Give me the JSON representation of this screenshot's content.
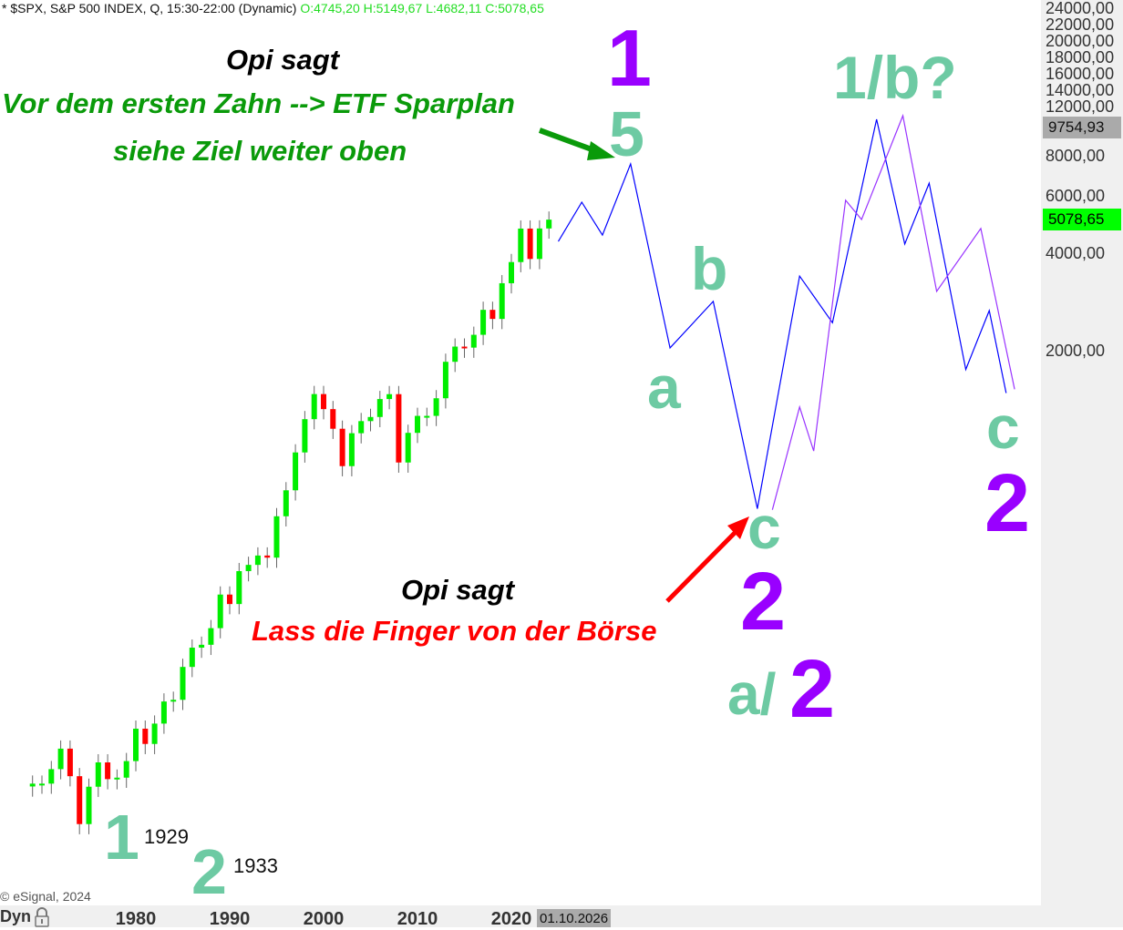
{
  "header": {
    "title": "* $SPX, S&P 500 INDEX, Q, 15:30-22:00 (Dynamic)",
    "ohlc": "O:4745,20 H:5149,67 L:4682,11 C:5078,65"
  },
  "copyright": "© eSignal, 2024",
  "footer": {
    "dyn_label": "Dyn",
    "cursor_date": "01.10.2026"
  },
  "colors": {
    "up": "#00ee00",
    "down": "#ff0000",
    "wick": "#666666",
    "projection_blue": "#0000ff",
    "projection_purple": "#9933ff",
    "wave_teal": "#6dcaa3",
    "wave_purple": "#9900ff",
    "last_price_bg": "#00ff00",
    "cursor_bg": "#aaaaaa"
  },
  "chart_data": {
    "type": "candlestick",
    "yscale": "log",
    "grid": false,
    "x_ticks": [
      "1980",
      "1990",
      "2000",
      "2010",
      "2020"
    ],
    "y_ticks": [
      "24000,00",
      "22000,00",
      "20000,00",
      "18000,00",
      "16000,00",
      "14000,00",
      "12000,00",
      "8000,00",
      "6000,00",
      "4000,00",
      "2000,00"
    ],
    "y_tick_values": [
      24000,
      22000,
      20000,
      18000,
      16000,
      14000,
      12000,
      8000,
      6000,
      4000,
      2000
    ],
    "last_price": {
      "value": 5078.65,
      "label": "5078,65"
    },
    "cursor_price": {
      "value": 9754.93,
      "label": "9754,93"
    },
    "annual_closes": {
      "years": [
        1969,
        1970,
        1971,
        1972,
        1973,
        1974,
        1975,
        1976,
        1977,
        1978,
        1979,
        1980,
        1981,
        1982,
        1983,
        1984,
        1985,
        1986,
        1987,
        1988,
        1989,
        1990,
        1991,
        1992,
        1993,
        1994,
        1995,
        1996,
        1997,
        1998,
        1999,
        2000,
        2001,
        2002,
        2003,
        2004,
        2005,
        2006,
        2007,
        2008,
        2009,
        2010,
        2011,
        2012,
        2013,
        2014,
        2015,
        2016,
        2017,
        2018,
        2019,
        2020,
        2021,
        2022,
        2023,
        2024
      ],
      "close": [
        92,
        92,
        102,
        118,
        97,
        69,
        90,
        107,
        95,
        96,
        108,
        136,
        122,
        141,
        165,
        167,
        211,
        242,
        247,
        278,
        353,
        330,
        417,
        436,
        466,
        459,
        616,
        741,
        970,
        1229,
        1469,
        1320,
        1148,
        880,
        1112,
        1212,
        1248,
        1418,
        1468,
        903,
        1115,
        1258,
        1258,
        1426,
        1848,
        2059,
        2044,
        2239,
        2674,
        2507,
        3231,
        3756,
        4766,
        3840,
        4770,
        5079
      ]
    },
    "projections": [
      {
        "color": "blue",
        "points": [
          [
            2025.0,
            4350
          ],
          [
            2027.5,
            5750
          ],
          [
            2029.7,
            4550
          ],
          [
            2032.7,
            7550
          ],
          [
            2036.9,
            2040
          ],
          [
            2041.5,
            2840
          ],
          [
            2046.2,
            650
          ],
          [
            2050.7,
            3400
          ],
          [
            2054.2,
            2440
          ],
          [
            2058.9,
            10370
          ],
          [
            2061.9,
            4270
          ],
          [
            2064.5,
            6580
          ],
          [
            2068.4,
            1750
          ],
          [
            2070.9,
            2660
          ],
          [
            2072.7,
            1480
          ]
        ]
      },
      {
        "color": "purple",
        "points": [
          [
            2047.8,
            645
          ],
          [
            2050.7,
            1340
          ],
          [
            2052.2,
            980
          ],
          [
            2055.6,
            5830
          ],
          [
            2057.3,
            5085
          ],
          [
            2061.7,
            10640
          ],
          [
            2065.3,
            3050
          ],
          [
            2070.0,
            4770
          ],
          [
            2073.6,
            1520
          ]
        ]
      }
    ],
    "annotations": {
      "opi1": "Opi sagt",
      "etf": "Vor dem ersten Zahn --> ETF Sparplan",
      "ziel": "siehe Ziel weiter oben",
      "opi2": "Opi sagt",
      "finger": "Lass die Finger von der Börse",
      "w1_top": "1",
      "w5": "5",
      "wb": "b",
      "wa": "a",
      "wc": "c",
      "w2_mid": "2",
      "wa2_a": "a/",
      "wa2_2": "2",
      "w1b": "1/b?",
      "wc_right": "c",
      "w2_right": "2",
      "w1_bottom": "1",
      "y1929": "1929",
      "w2_bottom": "2",
      "y1933": "1933"
    }
  }
}
